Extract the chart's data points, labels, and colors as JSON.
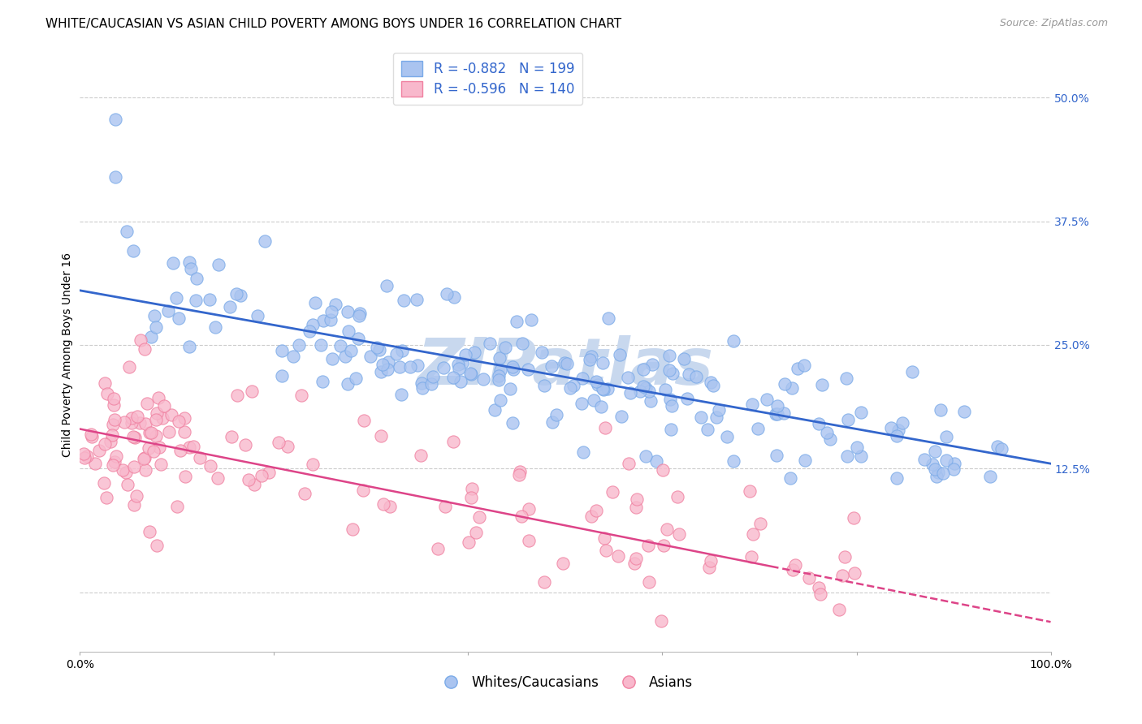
{
  "title": "WHITE/CAUCASIAN VS ASIAN CHILD POVERTY AMONG BOYS UNDER 16 CORRELATION CHART",
  "source": "Source: ZipAtlas.com",
  "ylabel": "Child Poverty Among Boys Under 16",
  "xlim": [
    0,
    1
  ],
  "ylim": [
    -0.06,
    0.54
  ],
  "yticks": [
    0.0,
    0.125,
    0.25,
    0.375,
    0.5
  ],
  "ytick_labels": [
    "",
    "12.5%",
    "25.0%",
    "37.5%",
    "50.0%"
  ],
  "xticks": [
    0.0,
    0.2,
    0.4,
    0.6,
    0.8,
    1.0
  ],
  "xtick_labels": [
    "0.0%",
    "",
    "",
    "",
    "",
    "100.0%"
  ],
  "blue_R": "-0.882",
  "blue_N": "199",
  "pink_R": "-0.596",
  "pink_N": "140",
  "blue_dot_color": "#aac4f0",
  "blue_edge_color": "#7aaae8",
  "pink_dot_color": "#f8b8cc",
  "pink_edge_color": "#f080a0",
  "blue_line_color": "#3366cc",
  "pink_line_color": "#dd4488",
  "watermark_color": "#c8d8ee",
  "legend_label_blue": "Whites/Caucasians",
  "legend_label_pink": "Asians",
  "background_color": "#ffffff",
  "title_fontsize": 11,
  "source_fontsize": 9,
  "label_fontsize": 10,
  "tick_fontsize": 10,
  "legend_fontsize": 12,
  "blue_intercept": 0.305,
  "blue_slope": -0.175,
  "pink_intercept": 0.165,
  "pink_slope": -0.195,
  "n_blue": 199,
  "n_pink": 140
}
